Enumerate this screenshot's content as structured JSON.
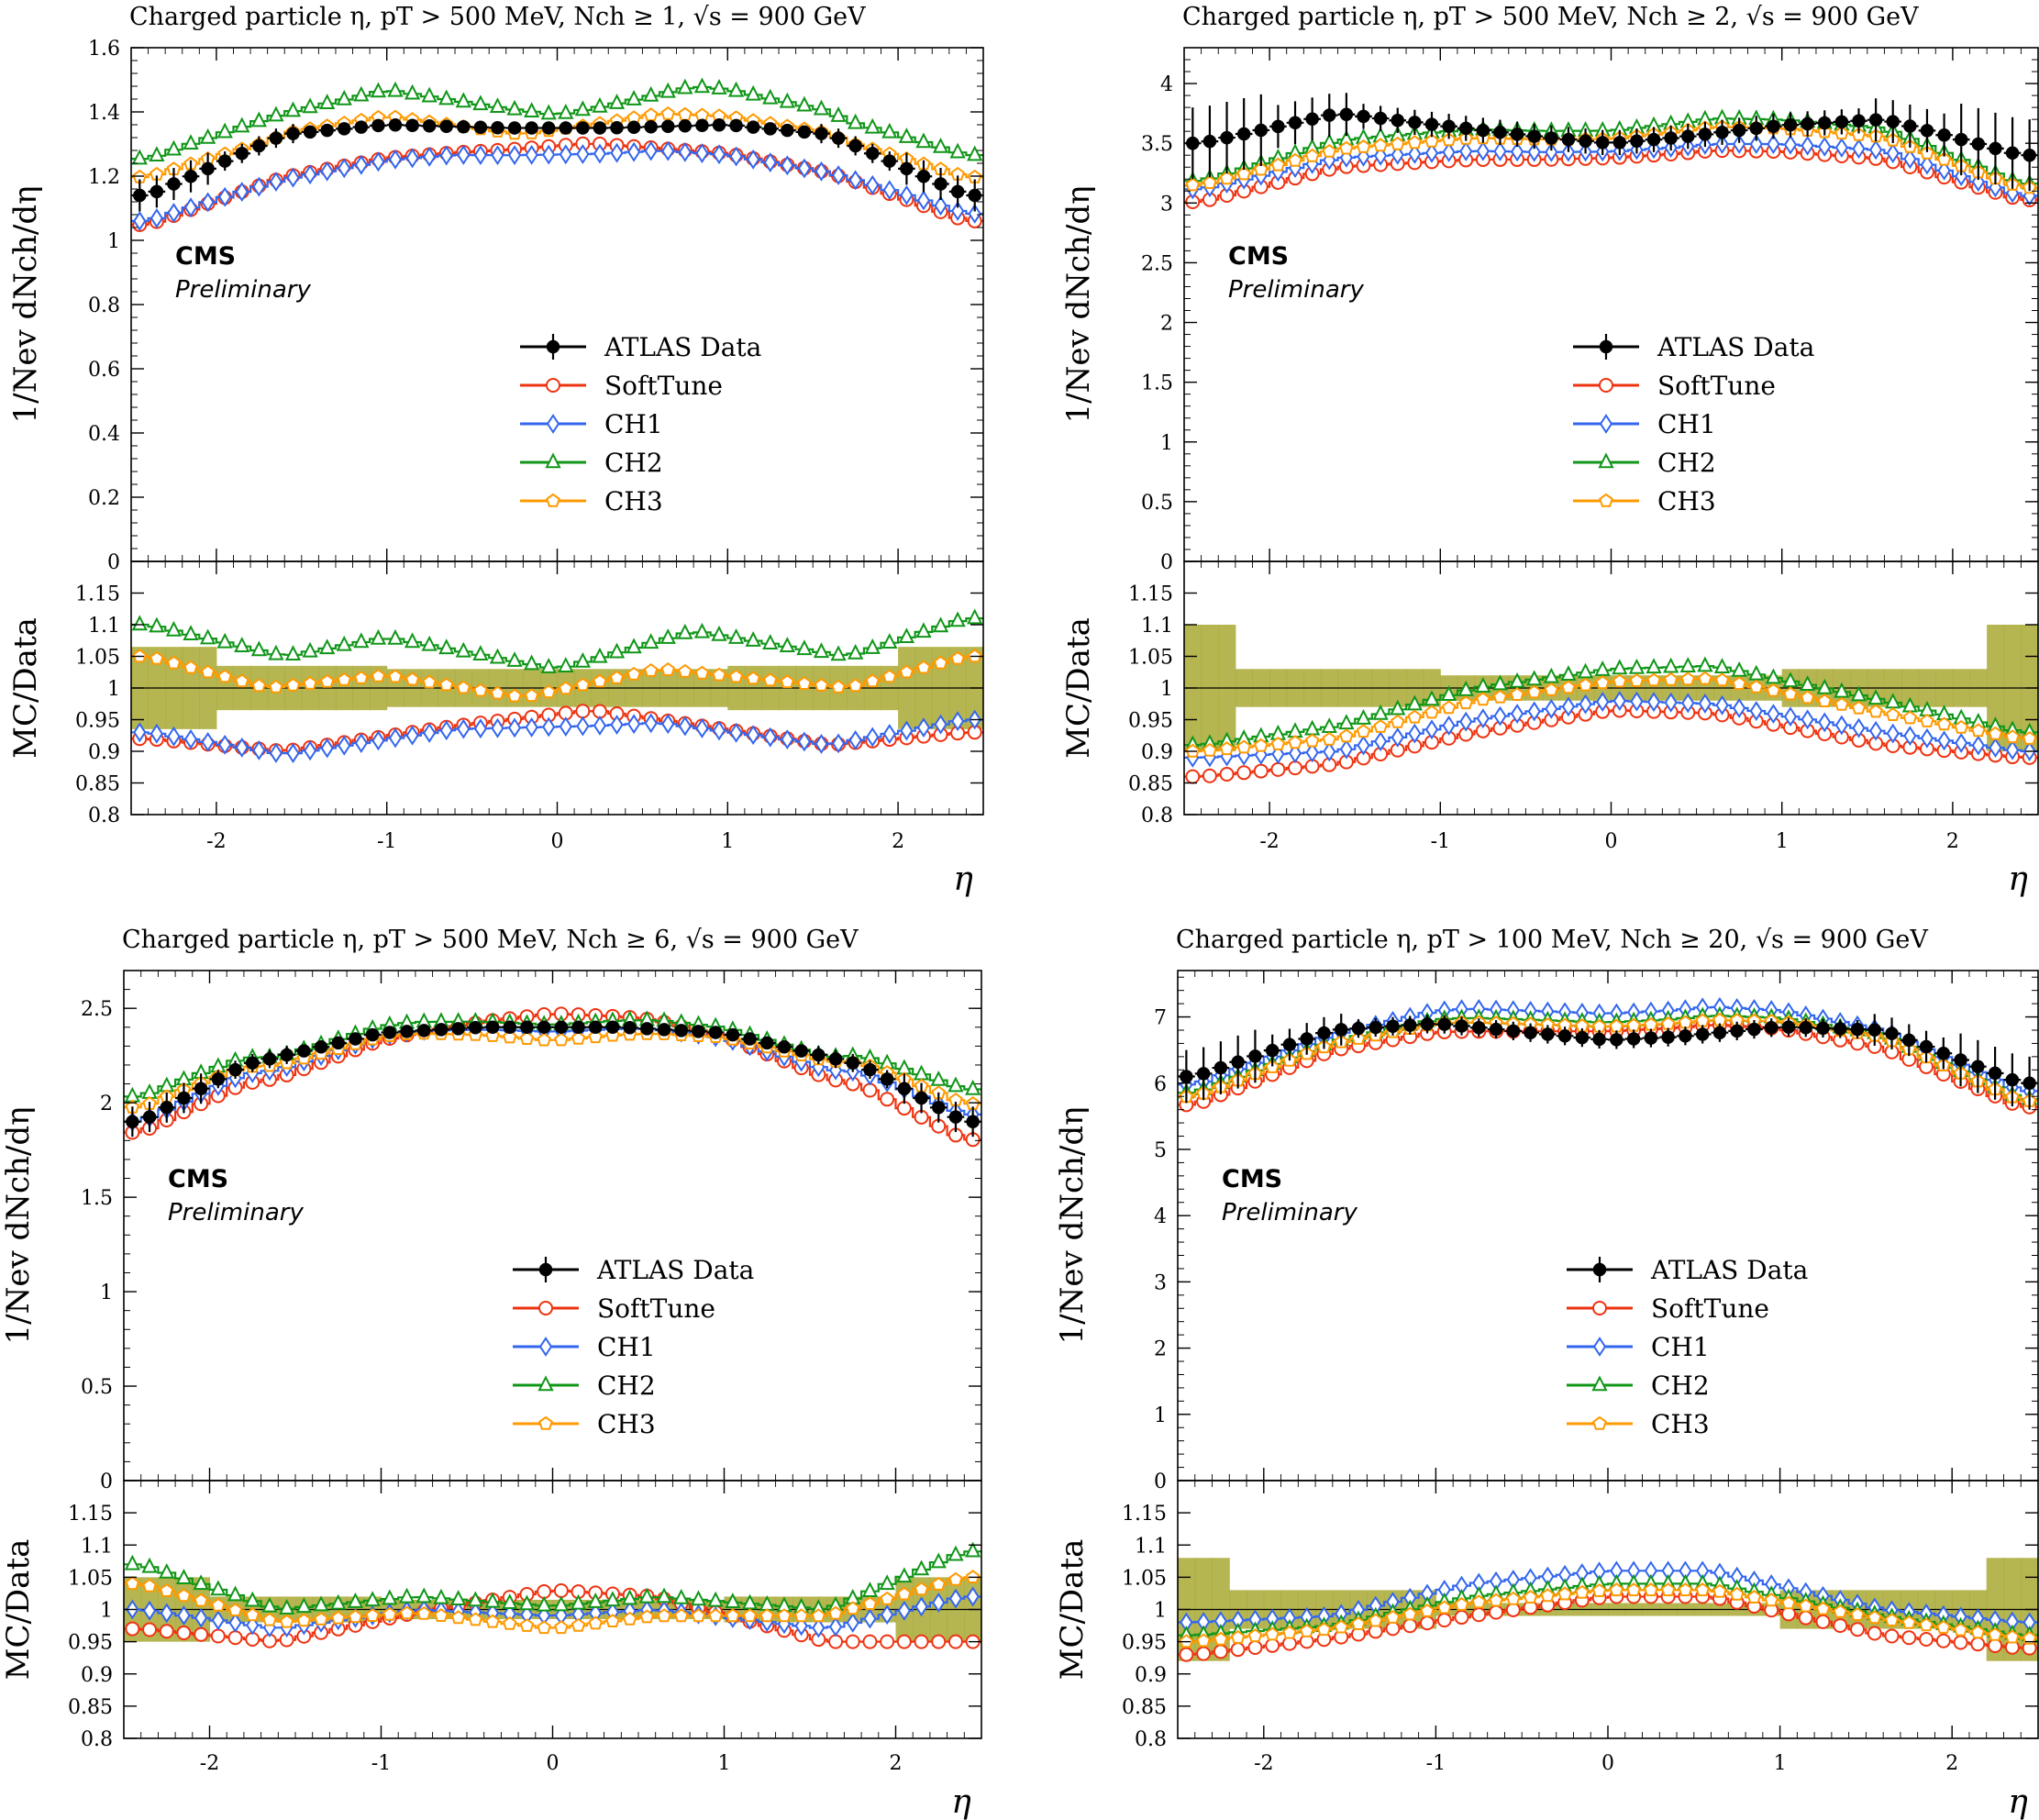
{
  "legend": {
    "entries": [
      {
        "key": "data",
        "label": "ATLAS Data",
        "color": "#000000",
        "marker": "filled-circle"
      },
      {
        "key": "softtune",
        "label": "SoftTune",
        "color": "#ee3311",
        "marker": "open-circle"
      },
      {
        "key": "ch1",
        "label": "CH1",
        "color": "#3366ee",
        "marker": "open-diamond"
      },
      {
        "key": "ch2",
        "label": "CH2",
        "color": "#109618",
        "marker": "open-triangle"
      },
      {
        "key": "ch3",
        "label": "CH3",
        "color": "#ff9900",
        "marker": "open-pentagon"
      }
    ]
  },
  "cms_label": "CMS",
  "preliminary_label": "Preliminary",
  "band_color": "#a8a832",
  "chart_data": [
    {
      "type": "line",
      "title": "Charged particle η, pT > 500 MeV, Nch ≥ 1, √s = 900 GeV",
      "ylabel": "1/Nev dNch/dη",
      "ratio_ylabel": "MC/Data",
      "xlabel": "η",
      "xlim": [
        -2.5,
        2.5
      ],
      "ylim": [
        0,
        1.6
      ],
      "yticks": [
        0,
        0.2,
        0.4,
        0.6,
        0.8,
        1,
        1.2,
        1.4,
        1.6
      ],
      "ratio_ylim": [
        0.8,
        1.2
      ],
      "ratio_yticks": [
        0.8,
        0.85,
        0.9,
        0.95,
        1,
        1.05,
        1.1,
        1.15
      ],
      "xticks": [
        -2,
        -1,
        0,
        1,
        2
      ],
      "data": {
        "edges": [
          -2.4,
          -1.6,
          -1.0,
          -0.3,
          0.0,
          0.3,
          1.0,
          1.6,
          2.4
        ],
        "values": [
          1.14,
          1.33,
          1.36,
          1.35,
          1.35,
          1.35,
          1.36,
          1.33,
          1.14
        ]
      },
      "data_err": 0.05,
      "ratio_band": {
        "edges": [
          -2.5,
          -2.0,
          -1.0,
          0.0,
          1.0,
          2.0,
          2.5
        ],
        "values": [
          0.065,
          0.035,
          0.03,
          0.03,
          0.035,
          0.065
        ]
      },
      "series": [
        {
          "name": "SoftTune",
          "ratio": {
            "edges": [
              -2.4,
              -1.6,
              -0.6,
              0.2,
              0.6,
              1.6,
              2.4
            ],
            "values": [
              0.92,
              0.9,
              0.94,
              0.965,
              0.95,
              0.91,
              0.93
            ]
          }
        },
        {
          "name": "CH1",
          "ratio": {
            "edges": [
              -2.4,
              -1.6,
              -0.6,
              0.2,
              0.6,
              1.6,
              2.4
            ],
            "values": [
              0.93,
              0.895,
              0.935,
              0.94,
              0.945,
              0.91,
              0.95
            ]
          }
        },
        {
          "name": "CH2",
          "ratio": {
            "edges": [
              -2.4,
              -1.6,
              -1.0,
              0.0,
              0.8,
              1.7,
              2.4
            ],
            "values": [
              1.1,
              1.05,
              1.08,
              1.03,
              1.09,
              1.05,
              1.11
            ]
          }
        },
        {
          "name": "CH3",
          "ratio": {
            "edges": [
              -2.4,
              -1.7,
              -1.0,
              -0.2,
              0.6,
              1.7,
              2.4
            ],
            "values": [
              1.05,
              1.0,
              1.02,
              0.985,
              1.03,
              1.0,
              1.05
            ]
          }
        }
      ]
    },
    {
      "type": "line",
      "title": "Charged particle η, pT > 500 MeV, Nch ≥ 2, √s = 900 GeV",
      "ylabel": "1/Nev dNch/dη",
      "ratio_ylabel": "MC/Data",
      "xlabel": "η",
      "xlim": [
        -2.5,
        2.5
      ],
      "ylim": [
        0,
        4.3
      ],
      "yticks": [
        0,
        0.5,
        1,
        1.5,
        2,
        2.5,
        3,
        3.5,
        4
      ],
      "ratio_ylim": [
        0.8,
        1.2
      ],
      "ratio_yticks": [
        0.8,
        0.85,
        0.9,
        0.95,
        1,
        1.05,
        1.1,
        1.15
      ],
      "xticks": [
        -2,
        -1,
        0,
        1,
        2
      ],
      "data": {
        "edges": [
          -2.4,
          -1.6,
          -1.0,
          -0.4,
          0.0,
          0.4,
          1.0,
          1.6,
          2.4
        ],
        "values": [
          3.5,
          3.75,
          3.65,
          3.55,
          3.5,
          3.55,
          3.65,
          3.7,
          3.4
        ]
      },
      "data_err": 0.3,
      "ratio_band": {
        "edges": [
          -2.5,
          -2.2,
          -1.0,
          1.0,
          2.2,
          2.5
        ],
        "values": [
          0.1,
          0.03,
          0.02,
          0.03,
          0.1
        ]
      },
      "series": [
        {
          "name": "SoftTune",
          "ratio": {
            "edges": [
              -2.4,
              -1.6,
              -0.8,
              0.0,
              0.6,
              1.6,
              2.4
            ],
            "values": [
              0.86,
              0.88,
              0.93,
              0.965,
              0.96,
              0.91,
              0.89
            ]
          }
        },
        {
          "name": "CH1",
          "ratio": {
            "edges": [
              -2.4,
              -1.6,
              -0.8,
              0.0,
              0.6,
              1.6,
              2.4
            ],
            "values": [
              0.89,
              0.9,
              0.95,
              0.98,
              0.975,
              0.93,
              0.9
            ]
          }
        },
        {
          "name": "CH2",
          "ratio": {
            "edges": [
              -2.4,
              -1.6,
              -0.8,
              0.0,
              0.6,
              1.6,
              2.4
            ],
            "values": [
              0.91,
              0.94,
              1.0,
              1.03,
              1.035,
              0.98,
              0.93
            ]
          }
        },
        {
          "name": "CH3",
          "ratio": {
            "edges": [
              -2.4,
              -1.6,
              -0.8,
              0.0,
              0.6,
              1.6,
              2.4
            ],
            "values": [
              0.9,
              0.92,
              0.98,
              1.01,
              1.015,
              0.96,
              0.92
            ]
          }
        }
      ]
    },
    {
      "type": "line",
      "title": "Charged particle η, pT > 500 MeV, Nch ≥ 6, √s = 900 GeV",
      "ylabel": "1/Nev dNch/dη",
      "ratio_ylabel": "MC/Data",
      "xlabel": "η",
      "xlim": [
        -2.5,
        2.5
      ],
      "ylim": [
        0,
        2.7
      ],
      "yticks": [
        0,
        0.5,
        1,
        1.5,
        2,
        2.5
      ],
      "ratio_ylim": [
        0.8,
        1.2
      ],
      "ratio_yticks": [
        0.8,
        0.85,
        0.9,
        0.95,
        1,
        1.05,
        1.1,
        1.15
      ],
      "xticks": [
        -2,
        -1,
        0,
        1,
        2
      ],
      "data": {
        "edges": [
          -2.4,
          -1.8,
          -1.0,
          -0.4,
          0.0,
          0.4,
          1.0,
          1.8,
          2.4
        ],
        "values": [
          1.9,
          2.2,
          2.37,
          2.4,
          2.4,
          2.4,
          2.37,
          2.2,
          1.9
        ]
      },
      "data_err": 0.08,
      "ratio_band": {
        "edges": [
          -2.5,
          -2.0,
          -1.0,
          1.0,
          2.0,
          2.5
        ],
        "values": [
          0.05,
          0.02,
          0.015,
          0.02,
          0.05
        ]
      },
      "series": [
        {
          "name": "SoftTune",
          "ratio": {
            "edges": [
              -2.4,
              -1.6,
              -0.8,
              0.0,
              0.6,
              1.6,
              2.4
            ],
            "values": [
              0.97,
              0.95,
              0.995,
              1.03,
              1.02,
              0.95,
              0.95
            ]
          }
        },
        {
          "name": "CH1",
          "ratio": {
            "edges": [
              -2.4,
              -1.6,
              -0.8,
              0.0,
              0.6,
              1.6,
              2.4
            ],
            "values": [
              1.0,
              0.97,
              1.0,
              0.99,
              1.0,
              0.97,
              1.02
            ]
          }
        },
        {
          "name": "CH2",
          "ratio": {
            "edges": [
              -2.4,
              -1.6,
              -0.8,
              0.0,
              0.6,
              1.6,
              2.4
            ],
            "values": [
              1.07,
              1.0,
              1.02,
              1.005,
              1.02,
              1.0,
              1.09
            ]
          }
        },
        {
          "name": "CH3",
          "ratio": {
            "edges": [
              -2.4,
              -1.6,
              -0.8,
              0.0,
              0.6,
              1.6,
              2.4
            ],
            "values": [
              1.04,
              0.98,
              0.995,
              0.97,
              0.99,
              0.99,
              1.05
            ]
          }
        }
      ]
    },
    {
      "type": "line",
      "title": "Charged particle η, pT > 100 MeV, Nch ≥ 20, √s = 900 GeV",
      "ylabel": "1/Nev dNch/dη",
      "ratio_ylabel": "MC/Data",
      "xlabel": "η",
      "xlim": [
        -2.5,
        2.5
      ],
      "ylim": [
        0,
        7.7
      ],
      "yticks": [
        0,
        1,
        2,
        3,
        4,
        5,
        6,
        7
      ],
      "ratio_ylim": [
        0.8,
        1.2
      ],
      "ratio_yticks": [
        0.8,
        0.85,
        0.9,
        0.95,
        1,
        1.05,
        1.1,
        1.15
      ],
      "xticks": [
        -2,
        -1,
        0,
        1,
        2
      ],
      "data": {
        "edges": [
          -2.4,
          -1.6,
          -1.0,
          -0.4,
          0.0,
          0.4,
          1.0,
          1.6,
          2.4
        ],
        "values": [
          6.1,
          6.8,
          6.9,
          6.75,
          6.65,
          6.7,
          6.85,
          6.8,
          6.0
        ]
      },
      "data_err": 0.4,
      "ratio_band": {
        "edges": [
          -2.5,
          -2.2,
          -1.0,
          1.0,
          2.2,
          2.5
        ],
        "values": [
          0.08,
          0.03,
          0.01,
          0.03,
          0.08
        ]
      },
      "series": [
        {
          "name": "SoftTune",
          "ratio": {
            "edges": [
              -2.4,
              -1.6,
              -0.8,
              0.0,
              0.6,
              1.6,
              2.4
            ],
            "values": [
              0.93,
              0.955,
              0.99,
              1.02,
              1.02,
              0.96,
              0.94
            ]
          }
        },
        {
          "name": "CH1",
          "ratio": {
            "edges": [
              -2.4,
              -1.6,
              -0.8,
              0.0,
              0.6,
              1.6,
              2.4
            ],
            "values": [
              0.98,
              0.99,
              1.04,
              1.06,
              1.06,
              1.0,
              0.98
            ]
          }
        },
        {
          "name": "CH2",
          "ratio": {
            "edges": [
              -2.4,
              -1.6,
              -0.8,
              0.0,
              0.6,
              1.6,
              2.4
            ],
            "values": [
              0.96,
              0.975,
              1.02,
              1.04,
              1.04,
              0.99,
              0.96
            ]
          }
        },
        {
          "name": "CH3",
          "ratio": {
            "edges": [
              -2.4,
              -1.6,
              -0.8,
              0.0,
              0.6,
              1.6,
              2.4
            ],
            "values": [
              0.95,
              0.97,
              1.01,
              1.03,
              1.03,
              0.985,
              0.955
            ]
          }
        }
      ]
    }
  ]
}
